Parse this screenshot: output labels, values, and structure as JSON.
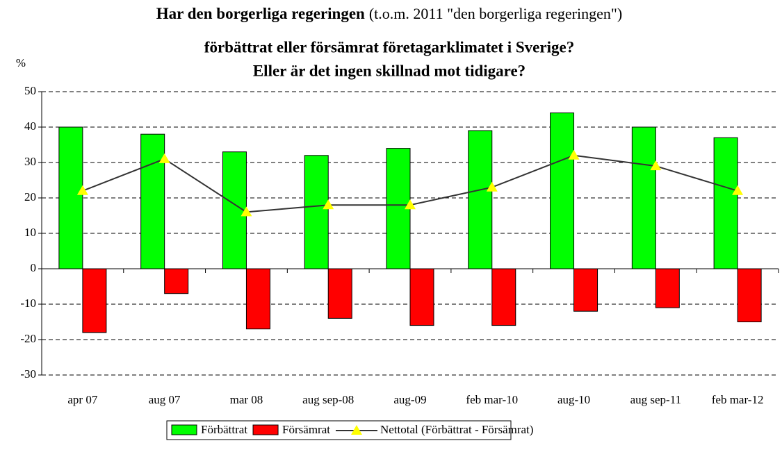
{
  "chart_data": {
    "type": "bar",
    "title": [
      "Har den borgerliga regeringen",
      "(t.o.m. 2011 \"den borgerliga regeringen\")",
      "förbättrat eller försämrat företagarklimatet i Sverige?",
      "Eller är det ingen skillnad mot tidigare?"
    ],
    "y_label": "%",
    "categories": [
      "apr 07",
      "aug 07",
      "mar 08",
      "aug sep-08",
      "aug-09",
      "feb mar-10",
      "aug-10",
      "aug sep-11",
      "feb mar-12"
    ],
    "series": [
      {
        "name": "Förbättrat",
        "type": "bar",
        "color": "#00ff00",
        "values": [
          40,
          38,
          33,
          32,
          34,
          39,
          44,
          40,
          37
        ]
      },
      {
        "name": "Försämrat",
        "type": "bar",
        "color": "#ff0000",
        "values": [
          -18,
          -7,
          -17,
          -14,
          -16,
          -16,
          -12,
          -11,
          -15
        ]
      },
      {
        "name": "Nettotal (Förbättrat - Försämrat)",
        "type": "line",
        "color": "#333333",
        "marker_color": "#ffff00",
        "values": [
          22,
          31,
          16,
          18,
          18,
          23,
          32,
          29,
          22
        ]
      }
    ],
    "ylim": [
      -30,
      50
    ],
    "yticks": [
      -30,
      -20,
      -10,
      0,
      10,
      20,
      30,
      40,
      50
    ],
    "grid": true,
    "legend": "bottom"
  }
}
